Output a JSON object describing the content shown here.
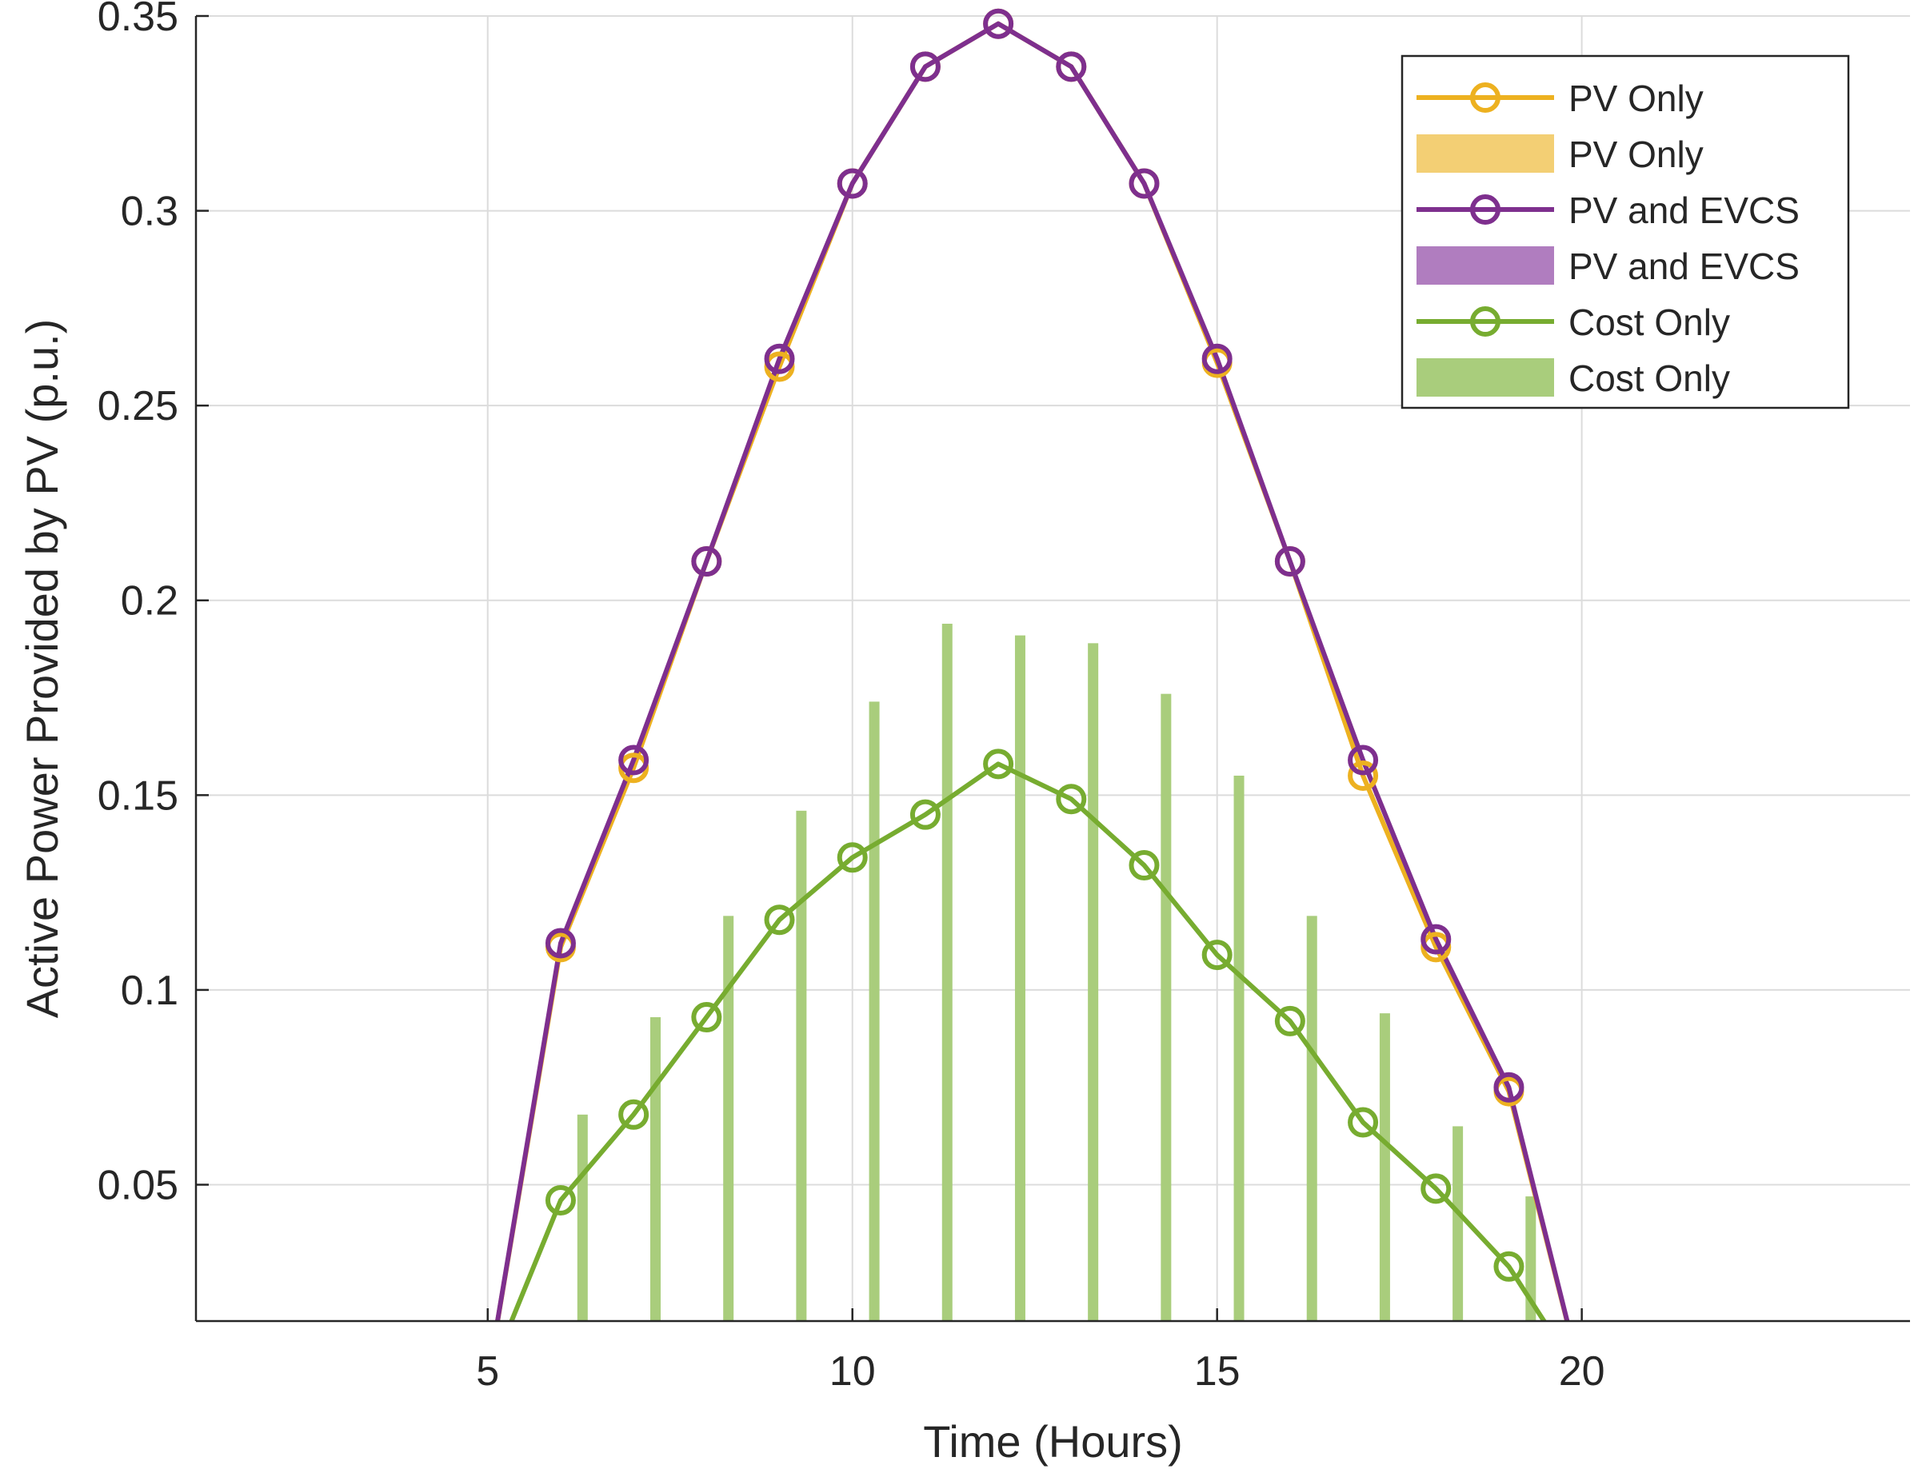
{
  "chart_data": {
    "type": "line",
    "title": "",
    "xlabel": "Time (Hours)",
    "ylabel": "Active Power Provided by PV (p.u.)",
    "xlim": [
      1,
      24.5
    ],
    "ylim": [
      0.015,
      0.35
    ],
    "grid": true,
    "legend_position": "top-right",
    "x_ticks": [
      5,
      10,
      15,
      20
    ],
    "x_tick_labels": [
      "5",
      "10",
      "15",
      "20"
    ],
    "y_ticks": [
      0.05,
      0.1,
      0.15,
      0.2,
      0.25,
      0.3,
      0.35
    ],
    "y_tick_labels": [
      "0.05",
      "0.1",
      "0.15",
      "0.2",
      "0.25",
      "0.3",
      "0.35"
    ],
    "x": [
      5,
      6,
      7,
      8,
      9,
      10,
      11,
      12,
      13,
      14,
      15,
      16,
      17,
      18,
      19,
      20
    ],
    "line_series": [
      {
        "name": "PV Only",
        "color": "#EDB120",
        "values": [
          0.0,
          0.111,
          0.157,
          0.21,
          0.26,
          0.307,
          0.337,
          0.348,
          0.337,
          0.307,
          0.261,
          0.21,
          0.155,
          0.111,
          0.074,
          0.0
        ]
      },
      {
        "name": "PV and EVCS",
        "color": "#7E2F8E",
        "values": [
          0.0,
          0.112,
          0.159,
          0.21,
          0.262,
          0.307,
          0.337,
          0.348,
          0.337,
          0.307,
          0.262,
          0.21,
          0.159,
          0.113,
          0.075,
          0.0
        ]
      },
      {
        "name": "Cost Only",
        "color": "#77AC30",
        "values": [
          0.0,
          0.046,
          0.068,
          0.093,
          0.118,
          0.134,
          0.145,
          0.158,
          0.149,
          0.132,
          0.109,
          0.092,
          0.066,
          0.049,
          0.029,
          0.0
        ]
      }
    ],
    "bar_series": [
      {
        "name": "PV Only",
        "color": "#F3CF74",
        "x": [],
        "values": []
      },
      {
        "name": "PV and EVCS",
        "color": "#B07DBF",
        "x": [],
        "values": []
      },
      {
        "name": "Cost Only",
        "color": "#A9CD7C",
        "x": [
          6.3,
          7.3,
          8.3,
          9.3,
          10.3,
          11.3,
          12.3,
          13.3,
          14.3,
          15.3,
          16.3,
          17.3,
          18.3,
          19.3
        ],
        "values": [
          0.068,
          0.093,
          0.119,
          0.146,
          0.174,
          0.194,
          0.191,
          0.189,
          0.176,
          0.155,
          0.119,
          0.094,
          0.065,
          0.047
        ]
      }
    ],
    "legend": [
      {
        "label": "PV Only",
        "kind": "line",
        "color": "#EDB120"
      },
      {
        "label": "PV Only",
        "kind": "bar",
        "color": "#F3CF74"
      },
      {
        "label": "PV and EVCS",
        "kind": "line",
        "color": "#7E2F8E"
      },
      {
        "label": "PV and EVCS",
        "kind": "bar",
        "color": "#B07DBF"
      },
      {
        "label": "Cost Only",
        "kind": "line",
        "color": "#77AC30"
      },
      {
        "label": "Cost Only",
        "kind": "bar",
        "color": "#A9CD7C"
      }
    ]
  }
}
